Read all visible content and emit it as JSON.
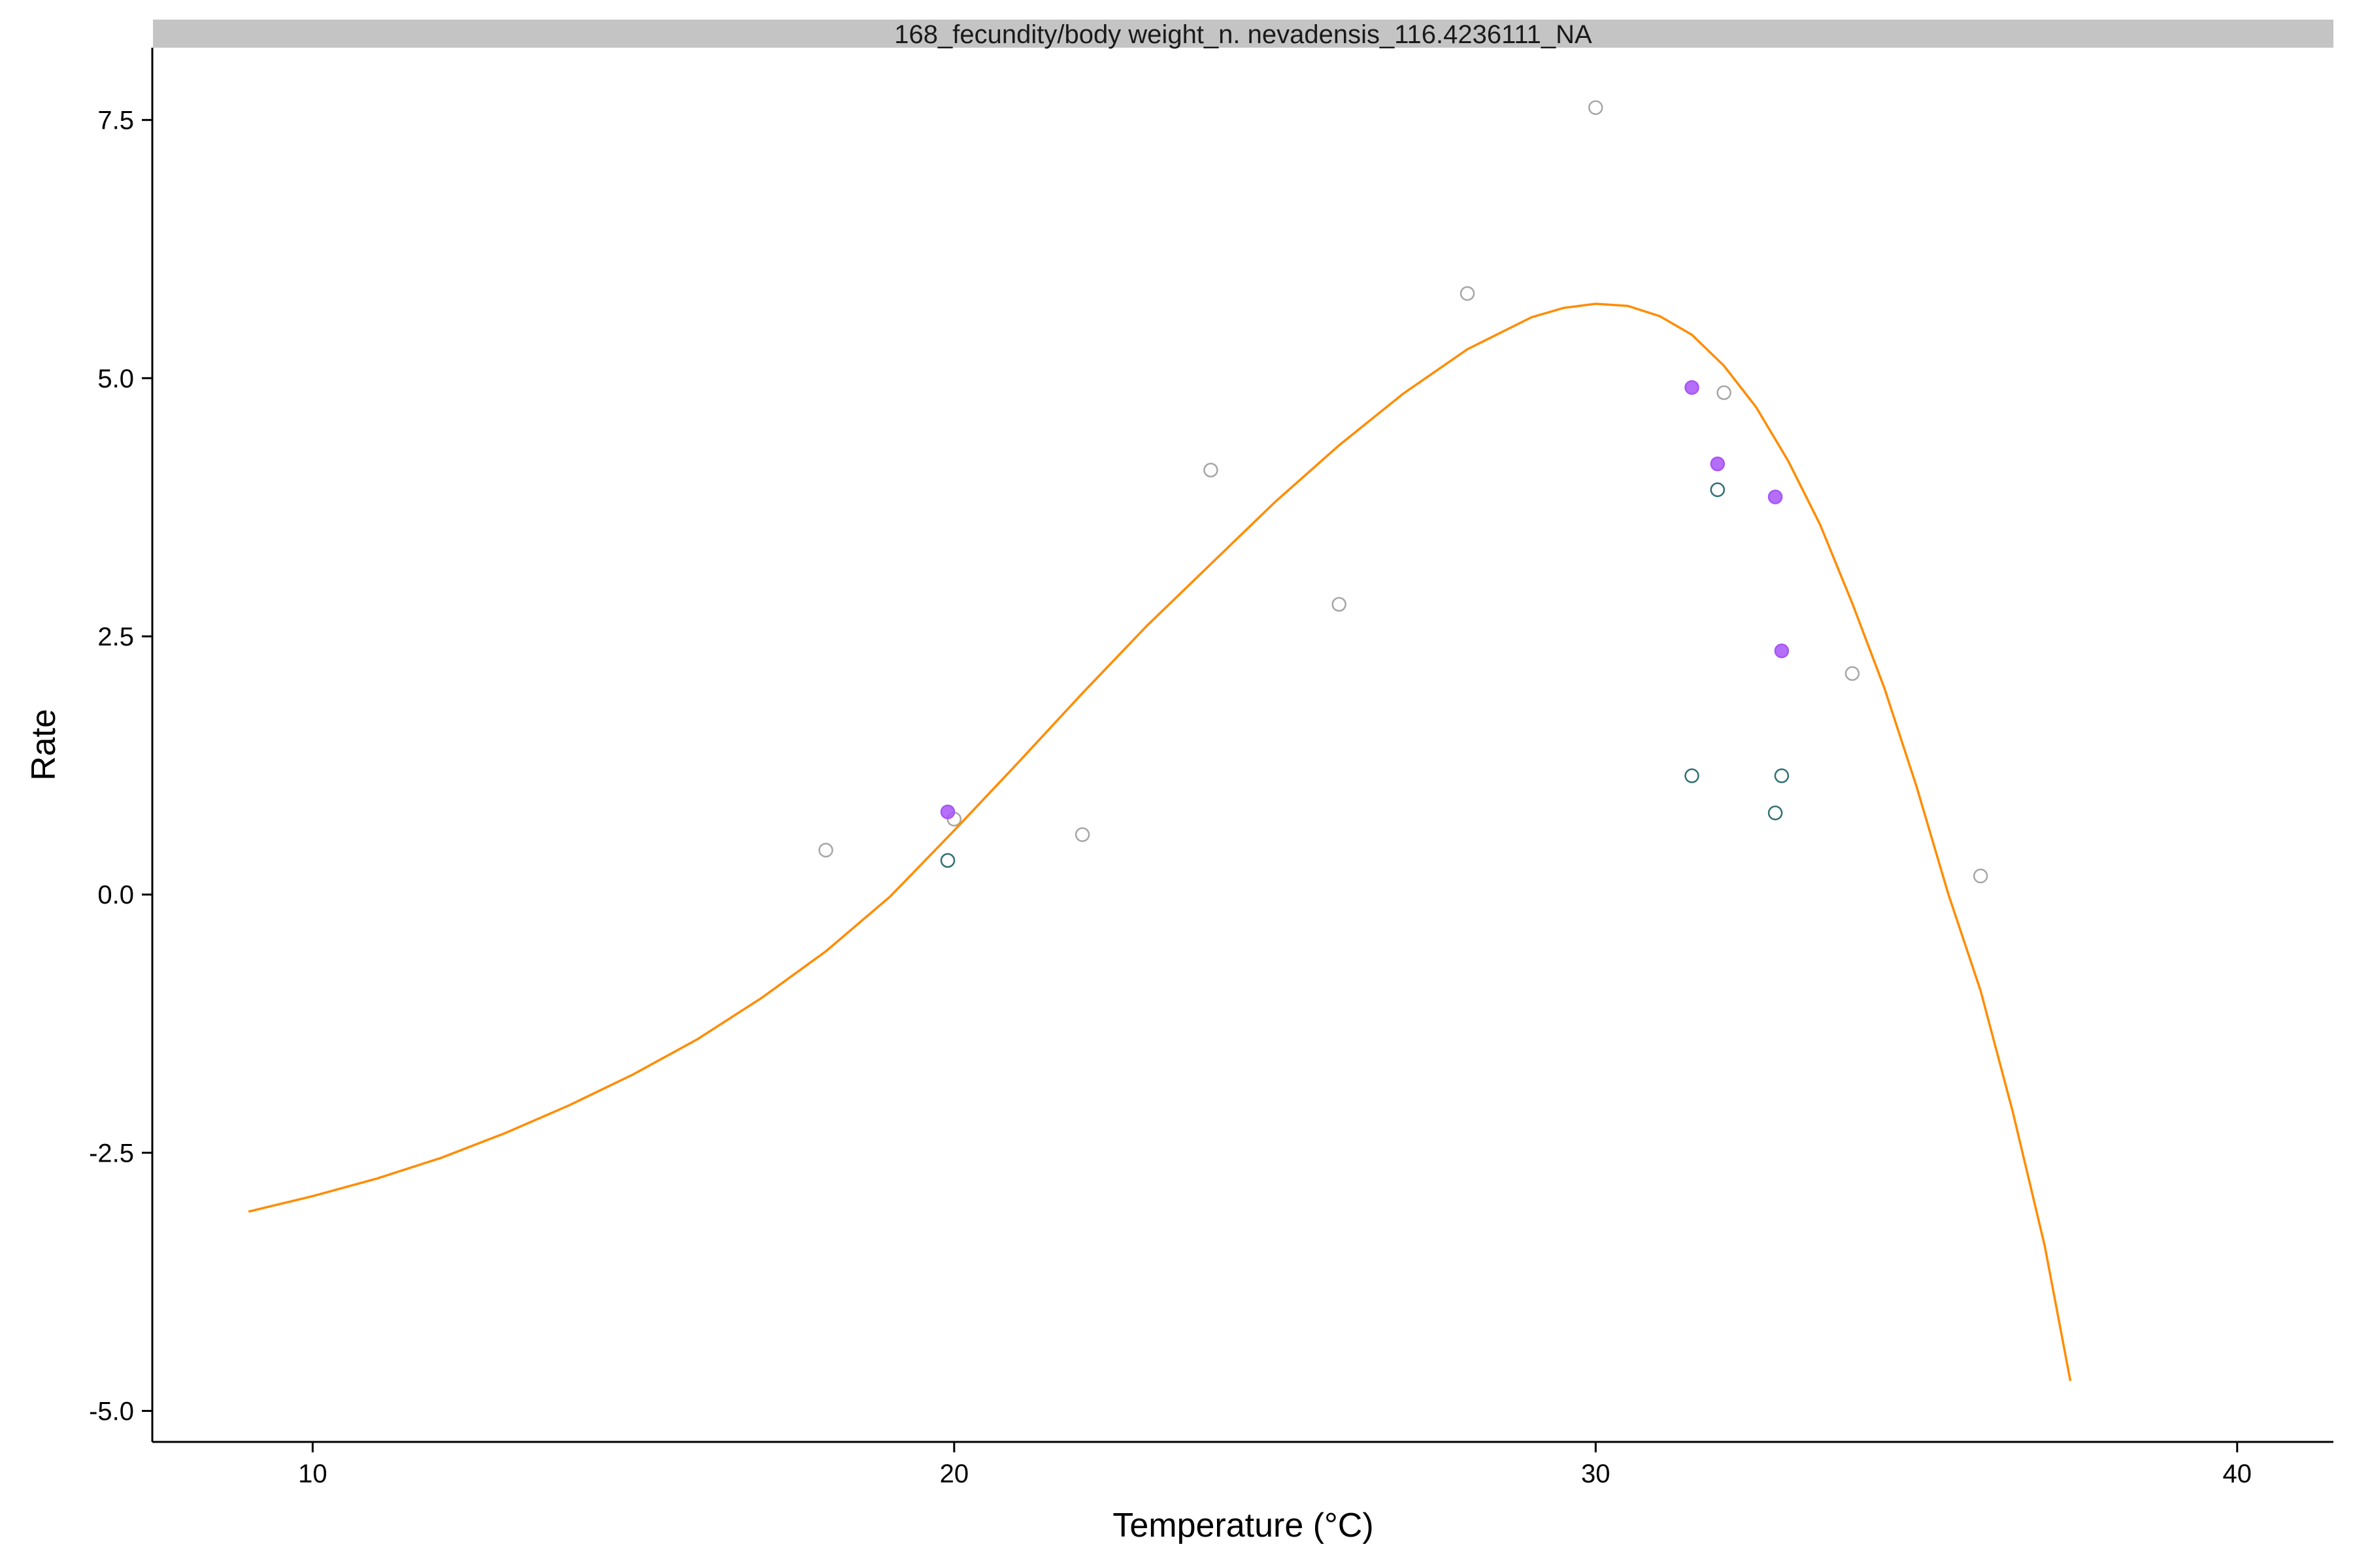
{
  "chart_data": {
    "type": "scatter",
    "title": "168_fecundity/body weight_n. nevadensis_116.4236111_NA",
    "xlabel": "Temperature (°C)",
    "ylabel": "Rate",
    "xlim": [
      7.5,
      41.5
    ],
    "ylim": [
      -5.3,
      8.2
    ],
    "x_ticks": [
      {
        "value": 10,
        "label": "10"
      },
      {
        "value": 20,
        "label": "20"
      },
      {
        "value": 30,
        "label": "30"
      },
      {
        "value": 40,
        "label": "40"
      }
    ],
    "y_ticks": [
      {
        "value": -5,
        "label": "-5.0"
      },
      {
        "value": -2.5,
        "label": "-2.5"
      },
      {
        "value": 0,
        "label": "0.0"
      },
      {
        "value": 2.5,
        "label": "2.5"
      },
      {
        "value": 5,
        "label": "5.0"
      },
      {
        "value": 7.5,
        "label": "7.5"
      }
    ],
    "grid": false,
    "legend": "none",
    "series": [
      {
        "style": "open-circle",
        "color": "#a6a6a6",
        "points": [
          [
            18,
            0.43
          ],
          [
            20,
            0.73
          ],
          [
            22,
            0.58
          ],
          [
            24,
            4.11
          ],
          [
            26,
            2.81
          ],
          [
            28,
            5.82
          ],
          [
            30,
            7.62
          ],
          [
            32,
            4.86
          ],
          [
            34,
            2.14
          ],
          [
            36,
            0.18
          ]
        ]
      },
      {
        "style": "filled-circle",
        "color": "#a855f7",
        "points": [
          [
            19.9,
            0.8
          ],
          [
            31.5,
            4.91
          ],
          [
            31.9,
            4.17
          ],
          [
            32.8,
            3.85
          ],
          [
            32.9,
            2.36
          ]
        ]
      },
      {
        "style": "open-circle",
        "color": "#2f6f73",
        "points": [
          [
            19.9,
            0.33
          ],
          [
            31.9,
            3.92
          ],
          [
            31.5,
            1.15
          ],
          [
            32.9,
            1.15
          ],
          [
            32.8,
            0.79
          ]
        ]
      },
      {
        "style": "line",
        "color": "#ff8c00",
        "points": [
          [
            9,
            -3.07
          ],
          [
            10,
            -2.92
          ],
          [
            11,
            -2.75
          ],
          [
            12,
            -2.55
          ],
          [
            13,
            -2.31
          ],
          [
            14,
            -2.04
          ],
          [
            15,
            -1.74
          ],
          [
            16,
            -1.4
          ],
          [
            17,
            -1.0
          ],
          [
            18,
            -0.55
          ],
          [
            19,
            -0.02
          ],
          [
            20,
            0.62
          ],
          [
            21,
            1.28
          ],
          [
            22,
            1.95
          ],
          [
            23,
            2.6
          ],
          [
            24,
            3.2
          ],
          [
            25,
            3.8
          ],
          [
            26,
            4.35
          ],
          [
            27,
            4.85
          ],
          [
            28,
            5.28
          ],
          [
            29,
            5.59
          ],
          [
            29.5,
            5.68
          ],
          [
            30,
            5.72
          ],
          [
            30.5,
            5.7
          ],
          [
            31,
            5.6
          ],
          [
            31.5,
            5.42
          ],
          [
            32,
            5.12
          ],
          [
            32.5,
            4.72
          ],
          [
            33,
            4.2
          ],
          [
            33.5,
            3.58
          ],
          [
            34,
            2.82
          ],
          [
            34.5,
            2.0
          ],
          [
            35,
            1.05
          ],
          [
            35.5,
            0.0
          ],
          [
            36,
            -0.93
          ],
          [
            36.5,
            -2.1
          ],
          [
            37,
            -3.4
          ],
          [
            37.4,
            -4.71
          ]
        ]
      }
    ]
  }
}
